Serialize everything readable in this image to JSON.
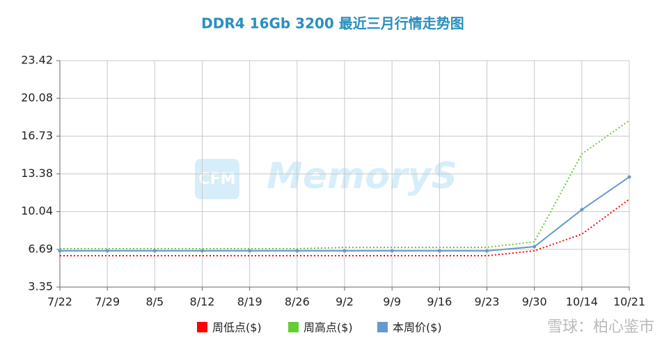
{
  "chart_data": {
    "type": "line",
    "title": "DDR4 16Gb 3200 最近三月行情走势图",
    "categories": [
      "7/22",
      "7/29",
      "8/5",
      "8/12",
      "8/19",
      "8/26",
      "9/2",
      "9/9",
      "9/16",
      "9/23",
      "9/30",
      "10/14",
      "10/21"
    ],
    "series": [
      {
        "name": "周低点($)",
        "color": "#ff0000",
        "style": "dotted",
        "values": [
          6.13,
          6.13,
          6.13,
          6.13,
          6.13,
          6.13,
          6.13,
          6.13,
          6.13,
          6.13,
          6.56,
          8.04,
          11.13
        ]
      },
      {
        "name": "周高点($)",
        "color": "#66cc33",
        "style": "dotted",
        "values": [
          6.75,
          6.75,
          6.75,
          6.75,
          6.75,
          6.75,
          6.87,
          6.87,
          6.87,
          6.87,
          7.36,
          15.15,
          18.11
        ]
      },
      {
        "name": "本周价($)",
        "color": "#6699cc",
        "style": "solid",
        "values": [
          6.56,
          6.56,
          6.56,
          6.56,
          6.56,
          6.56,
          6.56,
          6.56,
          6.56,
          6.56,
          6.93,
          10.21,
          13.11
        ]
      }
    ],
    "ylim": [
      3.35,
      23.42
    ],
    "yticks": [
      3.35,
      6.69,
      10.04,
      13.38,
      16.73,
      20.08,
      23.42
    ],
    "grid": true,
    "legend": "bottom",
    "watermarks": [
      "CFM",
      "MemoryS",
      "雪球：柏心鉴市"
    ]
  }
}
